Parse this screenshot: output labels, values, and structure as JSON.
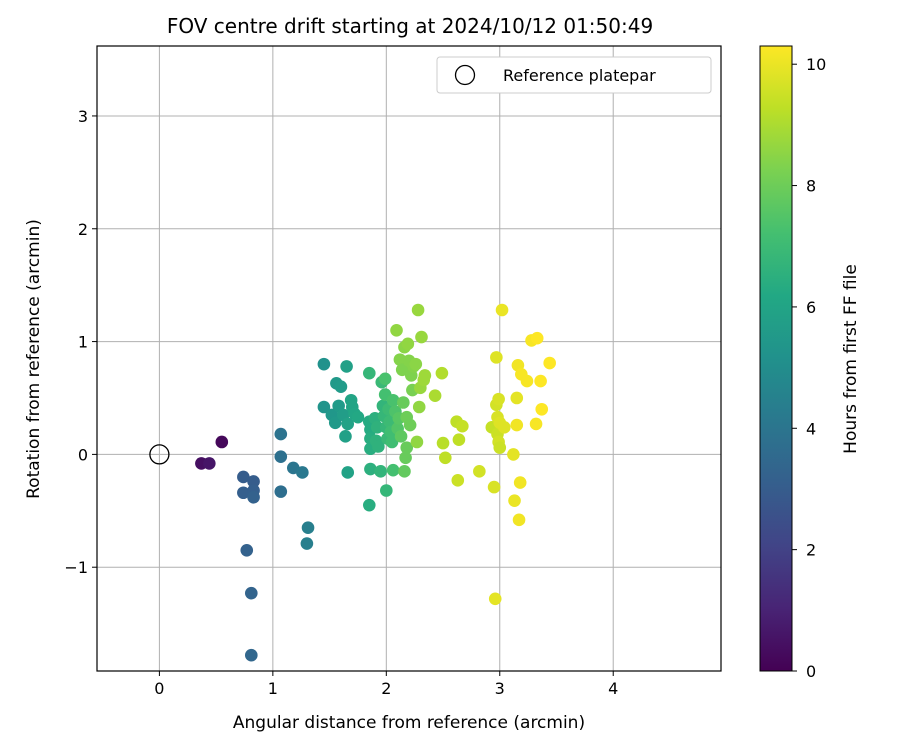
{
  "chart_data": {
    "type": "scatter",
    "title": "FOV centre drift starting at 2024/10/12 01:50:49",
    "xlabel": "Angular distance from reference (arcmin)",
    "ylabel": "Rotation from reference (arcmin)",
    "xlim": [
      -0.55,
      4.95
    ],
    "ylim": [
      -1.92,
      3.62
    ],
    "xticks": [
      0,
      1,
      2,
      3,
      4
    ],
    "xtick_labels": [
      "0",
      "1",
      "2",
      "3",
      "4"
    ],
    "yticks": [
      -1,
      0,
      1,
      2,
      3
    ],
    "ytick_labels": [
      "−1",
      "0",
      "1",
      "2",
      "3"
    ],
    "grid": true,
    "legend": {
      "position": "top-right",
      "entries": [
        "Reference platepar"
      ]
    },
    "reference_point": {
      "x": 0,
      "y": 0
    },
    "colorbar": {
      "label": "Hours from first FF file",
      "colormap": "viridis",
      "range": [
        0,
        10.3
      ],
      "ticks": [
        0,
        2,
        4,
        6,
        8,
        10
      ],
      "tick_labels": [
        "0",
        "2",
        "4",
        "6",
        "8",
        "10"
      ]
    },
    "points": [
      {
        "x": 0.55,
        "y": 0.11,
        "hours": 0.2
      },
      {
        "x": 0.37,
        "y": -0.08,
        "hours": 0.4
      },
      {
        "x": 0.44,
        "y": -0.08,
        "hours": 0.6
      },
      {
        "x": 0.74,
        "y": -0.2,
        "hours": 3.0
      },
      {
        "x": 0.74,
        "y": -0.34,
        "hours": 3.1
      },
      {
        "x": 0.83,
        "y": -0.24,
        "hours": 3.0
      },
      {
        "x": 0.83,
        "y": -0.32,
        "hours": 3.1
      },
      {
        "x": 0.83,
        "y": -0.38,
        "hours": 3.2
      },
      {
        "x": 0.77,
        "y": -0.85,
        "hours": 3.2
      },
      {
        "x": 0.81,
        "y": -1.23,
        "hours": 3.3
      },
      {
        "x": 0.81,
        "y": -1.78,
        "hours": 3.4
      },
      {
        "x": 1.07,
        "y": 0.18,
        "hours": 3.9
      },
      {
        "x": 1.07,
        "y": -0.02,
        "hours": 3.8
      },
      {
        "x": 1.07,
        "y": -0.33,
        "hours": 3.7
      },
      {
        "x": 1.18,
        "y": -0.12,
        "hours": 4.0
      },
      {
        "x": 1.26,
        "y": -0.16,
        "hours": 4.1
      },
      {
        "x": 1.31,
        "y": -0.65,
        "hours": 4.4
      },
      {
        "x": 1.3,
        "y": -0.79,
        "hours": 4.4
      },
      {
        "x": 1.45,
        "y": 0.8,
        "hours": 5.2
      },
      {
        "x": 1.45,
        "y": 0.42,
        "hours": 5.3
      },
      {
        "x": 1.52,
        "y": 0.35,
        "hours": 5.4
      },
      {
        "x": 1.55,
        "y": 0.28,
        "hours": 5.5
      },
      {
        "x": 1.56,
        "y": 0.63,
        "hours": 5.5
      },
      {
        "x": 1.58,
        "y": 0.43,
        "hours": 5.6
      },
      {
        "x": 1.6,
        "y": 0.6,
        "hours": 5.6
      },
      {
        "x": 1.62,
        "y": 0.35,
        "hours": 5.7
      },
      {
        "x": 1.64,
        "y": 0.16,
        "hours": 5.8
      },
      {
        "x": 1.65,
        "y": 0.78,
        "hours": 5.8
      },
      {
        "x": 1.66,
        "y": 0.27,
        "hours": 5.9
      },
      {
        "x": 1.66,
        "y": -0.16,
        "hours": 5.9
      },
      {
        "x": 1.69,
        "y": 0.48,
        "hours": 6.0
      },
      {
        "x": 1.7,
        "y": 0.42,
        "hours": 6.0
      },
      {
        "x": 1.72,
        "y": 0.36,
        "hours": 6.1
      },
      {
        "x": 1.75,
        "y": 0.33,
        "hours": 6.2
      },
      {
        "x": 1.85,
        "y": 0.72,
        "hours": 6.8
      },
      {
        "x": 1.85,
        "y": 0.29,
        "hours": 6.3
      },
      {
        "x": 1.86,
        "y": 0.22,
        "hours": 6.3
      },
      {
        "x": 1.86,
        "y": 0.14,
        "hours": 6.4
      },
      {
        "x": 1.86,
        "y": 0.05,
        "hours": 6.4
      },
      {
        "x": 1.86,
        "y": -0.13,
        "hours": 6.5
      },
      {
        "x": 1.85,
        "y": -0.45,
        "hours": 6.4
      },
      {
        "x": 1.9,
        "y": 0.32,
        "hours": 6.5
      },
      {
        "x": 1.91,
        "y": 0.12,
        "hours": 6.6
      },
      {
        "x": 1.92,
        "y": 0.24,
        "hours": 6.6
      },
      {
        "x": 1.93,
        "y": 0.07,
        "hours": 6.6
      },
      {
        "x": 1.95,
        "y": -0.15,
        "hours": 6.7
      },
      {
        "x": 1.96,
        "y": 0.64,
        "hours": 6.9
      },
      {
        "x": 1.97,
        "y": 0.43,
        "hours": 6.7
      },
      {
        "x": 1.98,
        "y": 0.34,
        "hours": 6.8
      },
      {
        "x": 1.99,
        "y": 0.67,
        "hours": 7.3
      },
      {
        "x": 1.99,
        "y": 0.53,
        "hours": 7.2
      },
      {
        "x": 2.0,
        "y": -0.32,
        "hours": 6.8
      },
      {
        "x": 2.0,
        "y": 0.24,
        "hours": 6.8
      },
      {
        "x": 2.01,
        "y": 0.14,
        "hours": 6.9
      },
      {
        "x": 2.02,
        "y": 0.4,
        "hours": 7.0
      },
      {
        "x": 2.03,
        "y": 0.29,
        "hours": 7.0
      },
      {
        "x": 2.04,
        "y": 0.2,
        "hours": 7.1
      },
      {
        "x": 2.05,
        "y": 0.11,
        "hours": 7.1
      },
      {
        "x": 2.06,
        "y": 0.48,
        "hours": 7.3
      },
      {
        "x": 2.06,
        "y": -0.14,
        "hours": 7.2
      },
      {
        "x": 2.08,
        "y": 0.38,
        "hours": 7.4
      },
      {
        "x": 2.09,
        "y": 1.1,
        "hours": 8.6
      },
      {
        "x": 2.1,
        "y": 0.23,
        "hours": 7.5
      },
      {
        "x": 2.11,
        "y": 0.32,
        "hours": 7.6
      },
      {
        "x": 2.12,
        "y": 0.84,
        "hours": 8.4
      },
      {
        "x": 2.13,
        "y": 0.16,
        "hours": 7.7
      },
      {
        "x": 2.14,
        "y": 0.75,
        "hours": 8.3
      },
      {
        "x": 2.15,
        "y": 0.46,
        "hours": 7.9
      },
      {
        "x": 2.16,
        "y": -0.15,
        "hours": 7.8
      },
      {
        "x": 2.16,
        "y": 0.95,
        "hours": 8.5
      },
      {
        "x": 2.17,
        "y": -0.03,
        "hours": 7.9
      },
      {
        "x": 2.18,
        "y": 0.06,
        "hours": 7.9
      },
      {
        "x": 2.18,
        "y": 0.33,
        "hours": 8.0
      },
      {
        "x": 2.19,
        "y": 0.98,
        "hours": 8.6
      },
      {
        "x": 2.2,
        "y": 0.83,
        "hours": 8.4
      },
      {
        "x": 2.21,
        "y": 0.26,
        "hours": 8.0
      },
      {
        "x": 2.22,
        "y": 0.7,
        "hours": 8.3
      },
      {
        "x": 2.23,
        "y": 0.57,
        "hours": 8.2
      },
      {
        "x": 2.24,
        "y": 0.78,
        "hours": 8.4
      },
      {
        "x": 2.26,
        "y": 0.8,
        "hours": 8.5
      },
      {
        "x": 2.27,
        "y": 0.11,
        "hours": 8.6
      },
      {
        "x": 2.28,
        "y": 1.28,
        "hours": 8.7
      },
      {
        "x": 2.29,
        "y": 0.42,
        "hours": 8.6
      },
      {
        "x": 2.3,
        "y": 0.59,
        "hours": 8.7
      },
      {
        "x": 2.31,
        "y": 1.04,
        "hours": 8.7
      },
      {
        "x": 2.33,
        "y": 0.66,
        "hours": 8.8
      },
      {
        "x": 2.34,
        "y": 0.7,
        "hours": 8.8
      },
      {
        "x": 2.43,
        "y": 0.52,
        "hours": 9.0
      },
      {
        "x": 2.49,
        "y": 0.72,
        "hours": 9.1
      },
      {
        "x": 2.5,
        "y": 0.1,
        "hours": 9.2
      },
      {
        "x": 2.52,
        "y": -0.03,
        "hours": 9.3
      },
      {
        "x": 2.62,
        "y": 0.29,
        "hours": 9.3
      },
      {
        "x": 2.63,
        "y": -0.23,
        "hours": 9.5
      },
      {
        "x": 2.64,
        "y": 0.13,
        "hours": 9.3
      },
      {
        "x": 2.67,
        "y": 0.25,
        "hours": 9.4
      },
      {
        "x": 2.82,
        "y": -0.15,
        "hours": 9.6
      },
      {
        "x": 2.93,
        "y": 0.24,
        "hours": 9.4
      },
      {
        "x": 2.95,
        "y": -0.29,
        "hours": 9.7
      },
      {
        "x": 2.96,
        "y": -1.28,
        "hours": 9.9
      },
      {
        "x": 2.97,
        "y": 0.86,
        "hours": 9.8
      },
      {
        "x": 2.97,
        "y": 0.44,
        "hours": 9.6
      },
      {
        "x": 2.98,
        "y": 0.33,
        "hours": 9.7
      },
      {
        "x": 2.98,
        "y": 0.18,
        "hours": 9.5
      },
      {
        "x": 2.99,
        "y": 0.49,
        "hours": 9.7
      },
      {
        "x": 2.99,
        "y": 0.11,
        "hours": 9.6
      },
      {
        "x": 3.0,
        "y": 0.06,
        "hours": 9.5
      },
      {
        "x": 3.0,
        "y": 0.28,
        "hours": 9.8
      },
      {
        "x": 3.02,
        "y": 1.28,
        "hours": 10.0
      },
      {
        "x": 3.04,
        "y": 0.24,
        "hours": 9.8
      },
      {
        "x": 3.12,
        "y": 0.0,
        "hours": 9.9
      },
      {
        "x": 3.13,
        "y": -0.41,
        "hours": 10.0
      },
      {
        "x": 3.15,
        "y": 0.5,
        "hours": 9.9
      },
      {
        "x": 3.15,
        "y": 0.26,
        "hours": 10.1
      },
      {
        "x": 3.16,
        "y": 0.79,
        "hours": 10.1
      },
      {
        "x": 3.17,
        "y": -0.58,
        "hours": 10.1
      },
      {
        "x": 3.18,
        "y": -0.25,
        "hours": 10.1
      },
      {
        "x": 3.19,
        "y": 0.71,
        "hours": 10.2
      },
      {
        "x": 3.24,
        "y": 0.65,
        "hours": 10.2
      },
      {
        "x": 3.28,
        "y": 1.01,
        "hours": 10.2
      },
      {
        "x": 3.32,
        "y": 0.27,
        "hours": 10.2
      },
      {
        "x": 3.33,
        "y": 1.03,
        "hours": 10.3
      },
      {
        "x": 3.36,
        "y": 0.65,
        "hours": 10.3
      },
      {
        "x": 3.37,
        "y": 0.4,
        "hours": 10.3
      },
      {
        "x": 3.44,
        "y": 0.81,
        "hours": 10.3
      }
    ]
  }
}
